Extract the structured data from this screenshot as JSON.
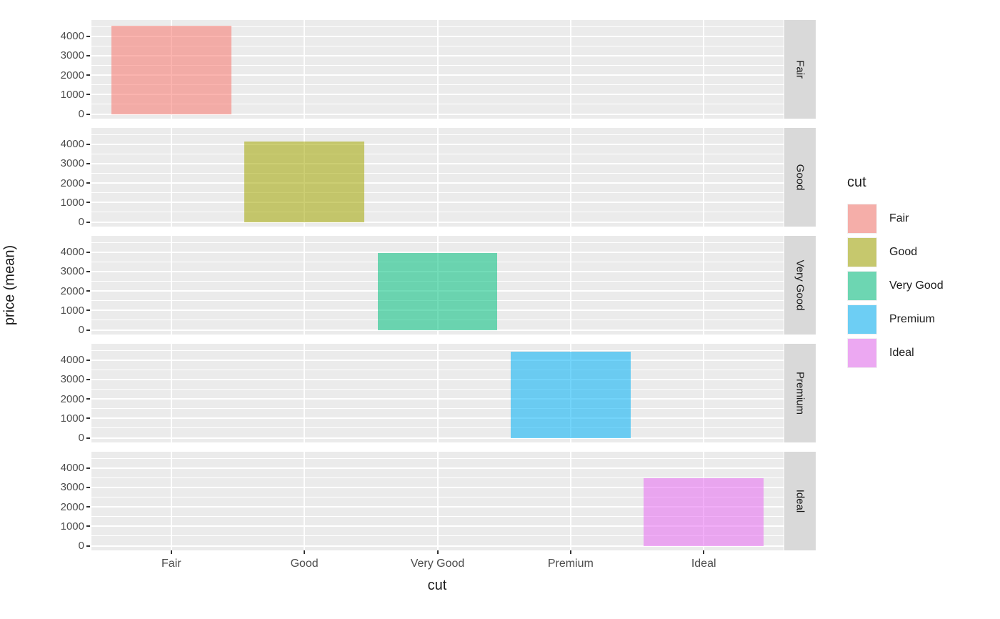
{
  "chart_data": {
    "type": "bar",
    "title": "",
    "xlabel": "cut",
    "ylabel": "price (mean)",
    "categories": [
      "Fair",
      "Good",
      "Very Good",
      "Premium",
      "Ideal"
    ],
    "values": [
      4530,
      4150,
      3950,
      4420,
      3460
    ],
    "bar_colors": [
      "#F8766D",
      "#A3A500",
      "#00BF7D",
      "#00B0F6",
      "#E76BF3"
    ],
    "bar_alpha": 0.55,
    "facets": [
      "Fair",
      "Good",
      "Very Good",
      "Premium",
      "Ideal"
    ],
    "facet_layout": "rows, strip labels on right, rotated 90deg",
    "y_ticks": [
      0,
      1000,
      2000,
      3000,
      4000
    ],
    "y_minor_ticks": [
      500,
      1500,
      2500,
      3500,
      4500
    ],
    "ylim": [
      -240,
      4834
    ],
    "grid": "white major/minor horizontal lines and white major vertical lines at category centers on grey panel",
    "legend_position": "right",
    "legend": {
      "title": "cut",
      "entries": [
        {
          "label": "Fair",
          "color": "#F8766D"
        },
        {
          "label": "Good",
          "color": "#A3A500"
        },
        {
          "label": "Very Good",
          "color": "#00BF7D"
        },
        {
          "label": "Premium",
          "color": "#00B0F6"
        },
        {
          "label": "Ideal",
          "color": "#E76BF3"
        }
      ]
    }
  },
  "colors": {
    "background": "#FFFFFF",
    "panel_bg": "#EBEBEB",
    "strip_bg": "#D9D9D9",
    "gridline": "#FFFFFF",
    "tick_label": "#4D4D4D",
    "axis_title": "#1A1A1A",
    "strip_text": "#1A1A1A",
    "tick_mark": "#333333"
  }
}
